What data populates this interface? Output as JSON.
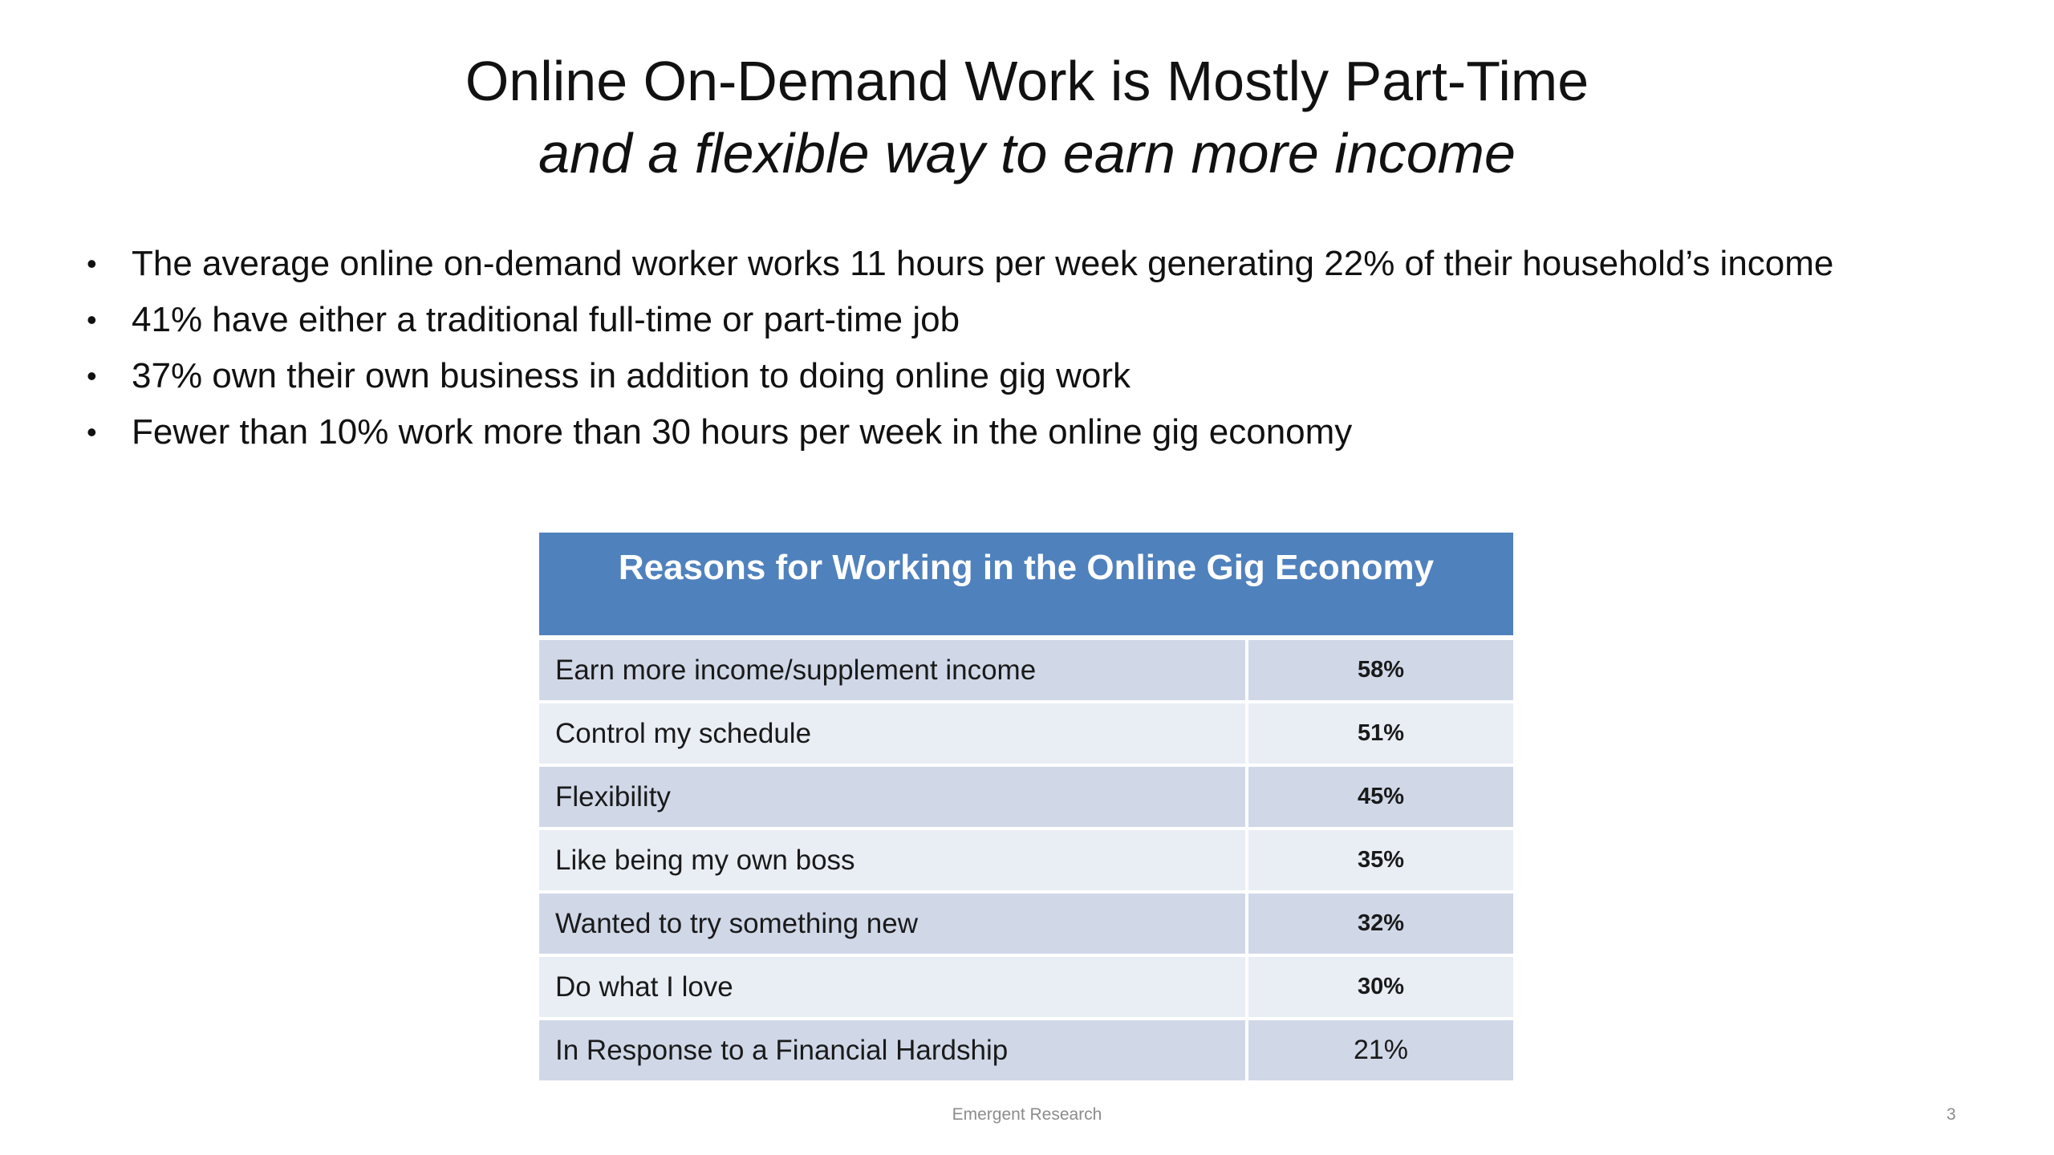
{
  "slide": {
    "title": "Online On-Demand Work is Mostly Part-Time",
    "subtitle": "and a flexible way to earn more income",
    "bullet_char": "•",
    "bullets": [
      "The average online on-demand worker works 11 hours per week generating 22% of their household’s income",
      "41% have either a traditional full-time or part-time job",
      "37% own their own business in addition to doing online gig work",
      "Fewer than 10% work more than 30 hours per week in the online gig economy"
    ]
  },
  "table": {
    "header": "Reasons for Working in the Online Gig Economy",
    "header_color": "#4f81bd",
    "rows": [
      {
        "reason": "Earn more income/supplement income",
        "value": "58%"
      },
      {
        "reason": "Control my schedule",
        "value": "51%"
      },
      {
        "reason": "Flexibility",
        "value": "45%"
      },
      {
        "reason": "Like being my own boss",
        "value": "35%"
      },
      {
        "reason": "Wanted to try something new",
        "value": "32%"
      },
      {
        "reason": "Do what I love",
        "value": "30%"
      },
      {
        "reason": "In Response to a Financial Hardship",
        "value": "21%"
      }
    ]
  },
  "footer": {
    "source": "Emergent Research",
    "page_number": "3"
  }
}
